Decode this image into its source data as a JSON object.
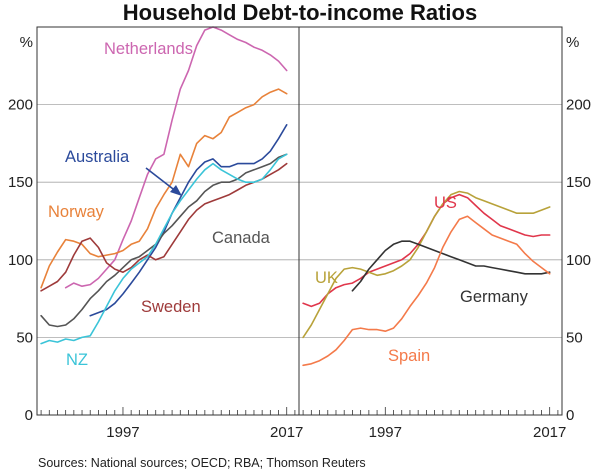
{
  "title": "Household Debt-to-income Ratios",
  "source": "Sources: National sources; OECD; RBA; Thomson Reuters",
  "chart_data": [
    {
      "type": "line",
      "panel": "left",
      "ylabel": "%",
      "ylim": [
        0,
        250
      ],
      "yticks": [
        0,
        50,
        100,
        150,
        200
      ],
      "xlim": [
        1986.5,
        2018.5
      ],
      "xticks": [
        1997,
        2017
      ],
      "grid": true,
      "series": [
        {
          "name": "Netherlands",
          "color": "#cc66b0",
          "x": [
            1990,
            1991,
            1992,
            1993,
            1994,
            1995,
            1996,
            1997,
            1998,
            1999,
            2000,
            2001,
            2002,
            2003,
            2004,
            2005,
            2006,
            2007,
            2008,
            2009,
            2010,
            2011,
            2012,
            2013,
            2014,
            2015,
            2016,
            2017
          ],
          "y": [
            82,
            85,
            83,
            84,
            88,
            94,
            100,
            113,
            125,
            140,
            155,
            165,
            168,
            190,
            210,
            222,
            238,
            248,
            250,
            248,
            245,
            242,
            240,
            237,
            235,
            232,
            228,
            222
          ]
        },
        {
          "name": "Australia",
          "color": "#2b4a9b",
          "x": [
            1993,
            1994,
            1995,
            1996,
            1997,
            1998,
            1999,
            2000,
            2001,
            2002,
            2003,
            2004,
            2005,
            2006,
            2007,
            2008,
            2009,
            2010,
            2011,
            2012,
            2013,
            2014,
            2015,
            2016,
            2017
          ],
          "y": [
            64,
            66,
            68,
            72,
            78,
            85,
            92,
            100,
            108,
            118,
            130,
            140,
            150,
            158,
            163,
            165,
            160,
            160,
            162,
            162,
            162,
            165,
            170,
            178,
            187
          ]
        },
        {
          "name": "Norway",
          "color": "#e8823a",
          "x": [
            1987,
            1988,
            1989,
            1990,
            1991,
            1992,
            1993,
            1994,
            1995,
            1996,
            1997,
            1998,
            1999,
            2000,
            2001,
            2002,
            2003,
            2004,
            2005,
            2006,
            2007,
            2008,
            2009,
            2010,
            2011,
            2012,
            2013,
            2014,
            2015,
            2016,
            2017
          ],
          "y": [
            82,
            96,
            105,
            113,
            112,
            110,
            104,
            102,
            103,
            104,
            106,
            110,
            112,
            120,
            133,
            142,
            150,
            168,
            160,
            175,
            180,
            178,
            182,
            192,
            195,
            198,
            200,
            205,
            208,
            210,
            207
          ]
        },
        {
          "name": "Canada",
          "color": "#555555",
          "x": [
            1987,
            1988,
            1989,
            1990,
            1991,
            1992,
            1993,
            1994,
            1995,
            1996,
            1997,
            1998,
            1999,
            2000,
            2001,
            2002,
            2003,
            2004,
            2005,
            2006,
            2007,
            2008,
            2009,
            2010,
            2011,
            2012,
            2013,
            2014,
            2015,
            2016,
            2017
          ],
          "y": [
            64,
            58,
            57,
            58,
            62,
            68,
            75,
            80,
            86,
            90,
            95,
            100,
            102,
            106,
            110,
            117,
            122,
            128,
            134,
            138,
            144,
            148,
            150,
            150,
            152,
            156,
            158,
            160,
            162,
            166,
            168
          ]
        },
        {
          "name": "Sweden",
          "color": "#9e3a3a",
          "x": [
            1987,
            1988,
            1989,
            1990,
            1991,
            1992,
            1993,
            1994,
            1995,
            1996,
            1997,
            1998,
            1999,
            2000,
            2001,
            2002,
            2003,
            2004,
            2005,
            2006,
            2007,
            2008,
            2009,
            2010,
            2011,
            2012,
            2013,
            2014,
            2015,
            2016,
            2017
          ],
          "y": [
            80,
            83,
            86,
            92,
            103,
            112,
            114,
            108,
            98,
            94,
            92,
            95,
            100,
            103,
            100,
            102,
            110,
            118,
            126,
            132,
            136,
            138,
            140,
            142,
            145,
            148,
            150,
            152,
            155,
            158,
            162
          ]
        },
        {
          "name": "NZ",
          "color": "#3bc4d8",
          "x": [
            1987,
            1988,
            1989,
            1990,
            1991,
            1992,
            1993,
            1994,
            1995,
            1996,
            1997,
            1998,
            1999,
            2000,
            2001,
            2002,
            2003,
            2004,
            2005,
            2006,
            2007,
            2008,
            2009,
            2010,
            2011,
            2012,
            2013,
            2014,
            2015,
            2016,
            2017
          ],
          "y": [
            46,
            48,
            47,
            49,
            48,
            50,
            51,
            60,
            70,
            80,
            88,
            94,
            98,
            102,
            110,
            120,
            130,
            138,
            145,
            152,
            158,
            162,
            158,
            155,
            152,
            150,
            150,
            152,
            158,
            165,
            168
          ]
        }
      ]
    },
    {
      "type": "line",
      "panel": "right",
      "ylabel": "%",
      "ylim": [
        0,
        250
      ],
      "yticks": [
        0,
        50,
        100,
        150,
        200
      ],
      "xlim": [
        1986.5,
        2018.5
      ],
      "xticks": [
        1997,
        2017
      ],
      "grid": true,
      "series": [
        {
          "name": "US",
          "color": "#e0364b",
          "x": [
            1987,
            1988,
            1989,
            1990,
            1991,
            1992,
            1993,
            1994,
            1995,
            1996,
            1997,
            1998,
            1999,
            2000,
            2001,
            2002,
            2003,
            2004,
            2005,
            2006,
            2007,
            2008,
            2009,
            2010,
            2011,
            2012,
            2013,
            2014,
            2015,
            2016,
            2017
          ],
          "y": [
            72,
            70,
            72,
            78,
            82,
            84,
            85,
            88,
            92,
            94,
            96,
            98,
            100,
            104,
            110,
            118,
            128,
            136,
            140,
            142,
            140,
            135,
            130,
            126,
            122,
            120,
            118,
            116,
            115,
            116,
            116
          ]
        },
        {
          "name": "UK",
          "color": "#b8a23a",
          "x": [
            1987,
            1988,
            1989,
            1990,
            1991,
            1992,
            1993,
            1994,
            1995,
            1996,
            1997,
            1998,
            1999,
            2000,
            2001,
            2002,
            2003,
            2004,
            2005,
            2006,
            2007,
            2008,
            2009,
            2010,
            2011,
            2012,
            2013,
            2014,
            2015,
            2016,
            2017
          ],
          "y": [
            50,
            58,
            68,
            78,
            88,
            94,
            95,
            94,
            92,
            90,
            91,
            93,
            96,
            100,
            108,
            118,
            128,
            136,
            142,
            144,
            143,
            140,
            138,
            136,
            134,
            132,
            130,
            130,
            130,
            132,
            134
          ]
        },
        {
          "name": "Germany",
          "color": "#333333",
          "x": [
            1993,
            1994,
            1995,
            1996,
            1997,
            1998,
            1999,
            2000,
            2001,
            2002,
            2003,
            2004,
            2005,
            2006,
            2007,
            2008,
            2009,
            2010,
            2011,
            2012,
            2013,
            2014,
            2015,
            2016,
            2017
          ],
          "y": [
            80,
            86,
            94,
            100,
            106,
            110,
            112,
            112,
            110,
            108,
            106,
            104,
            102,
            100,
            98,
            96,
            96,
            95,
            94,
            93,
            92,
            91,
            91,
            91,
            92
          ]
        },
        {
          "name": "Spain",
          "color": "#f47a4a",
          "x": [
            1987,
            1988,
            1989,
            1990,
            1991,
            1992,
            1993,
            1994,
            1995,
            1996,
            1997,
            1998,
            1999,
            2000,
            2001,
            2002,
            2003,
            2004,
            2005,
            2006,
            2007,
            2008,
            2009,
            2010,
            2011,
            2012,
            2013,
            2014,
            2015,
            2016,
            2017
          ],
          "y": [
            32,
            33,
            35,
            38,
            42,
            48,
            55,
            56,
            55,
            55,
            54,
            56,
            62,
            70,
            77,
            85,
            95,
            108,
            118,
            126,
            128,
            124,
            120,
            116,
            114,
            112,
            110,
            104,
            99,
            95,
            91
          ]
        }
      ]
    }
  ]
}
